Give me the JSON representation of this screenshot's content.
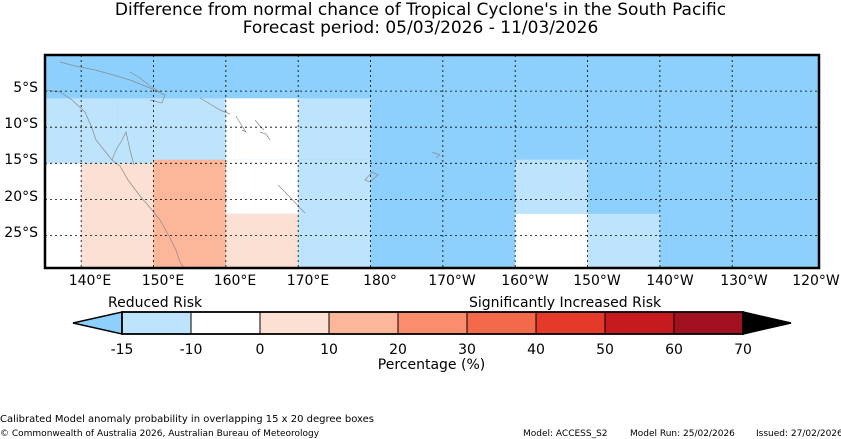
{
  "title_line1": "Difference from normal chance of Tropical Cyclone's in the South Pacific",
  "title_line2": "Forecast period: 05/03/2026 - 11/03/2026",
  "lat_labels": [
    "5°S",
    "10°S",
    "15°S",
    "20°S",
    "25°S"
  ],
  "lon_labels": [
    "140°E",
    "150°E",
    "160°E",
    "170°E",
    "180°",
    "170°W",
    "160°W",
    "150°W",
    "140°W",
    "130°W",
    "120°W"
  ],
  "map_extent": {
    "lon_min": 135,
    "lon_max": 242,
    "lat_min": -29.5,
    "lat_max": 0
  },
  "colors": {
    "blue_dark": "#8dcffd",
    "blue_light": "#bde3fd",
    "white": "#ffffff",
    "salmon_light": "#fde0d4",
    "salmon_mid": "#fcb79b",
    "orange": "#fb8d6c",
    "red_light": "#f5694b",
    "red": "#e53a2a",
    "red_dark": "#c71a1e",
    "maroon": "#a2111f",
    "black": "#000000"
  },
  "anomaly_cells": [
    {
      "lon1": 135,
      "lon2": 145,
      "lat1": -6,
      "lat2": -15,
      "cat": "blue_light"
    },
    {
      "lon1": 145,
      "lon2": 160,
      "lat1": -6,
      "lat2": -15,
      "cat": "blue_light"
    },
    {
      "lon1": 160,
      "lon2": 170,
      "lat1": -6,
      "lat2": -14.5,
      "cat": "white"
    },
    {
      "lon1": 170,
      "lon2": 180,
      "lat1": -6,
      "lat2": -14.5,
      "cat": "blue_light"
    },
    {
      "lon1": 135,
      "lon2": 140,
      "lat1": -15,
      "lat2": -29.5,
      "cat": "white"
    },
    {
      "lon1": 140,
      "lon2": 150,
      "lat1": -15,
      "lat2": -29.5,
      "cat": "salmon_light"
    },
    {
      "lon1": 150,
      "lon2": 160,
      "lat1": -14.5,
      "lat2": -29.5,
      "cat": "salmon_mid"
    },
    {
      "lon1": 160,
      "lon2": 170,
      "lat1": -14.5,
      "lat2": -22,
      "cat": "white"
    },
    {
      "lon1": 160,
      "lon2": 170,
      "lat1": -22,
      "lat2": -29.5,
      "cat": "salmon_light"
    },
    {
      "lon1": 170,
      "lon2": 180,
      "lat1": -14.5,
      "lat2": -29.5,
      "cat": "blue_light"
    },
    {
      "lon1": 200,
      "lon2": 210,
      "lat1": -14.5,
      "lat2": -22,
      "cat": "blue_light"
    },
    {
      "lon1": 200,
      "lon2": 210,
      "lat1": -22,
      "lat2": -29.5,
      "cat": "white"
    },
    {
      "lon1": 210,
      "lon2": 220,
      "lat1": -22,
      "lat2": -29.5,
      "cat": "blue_light"
    }
  ],
  "colorbar": {
    "label": "Percentage (%)",
    "reduced_label": "Reduced Risk",
    "increased_label": "Significantly Increased Risk",
    "ticks": [
      "-15",
      "-10",
      "0",
      "10",
      "20",
      "30",
      "40",
      "50",
      "60",
      "70"
    ],
    "under_color": "blue_dark",
    "over_color": "black",
    "segments": [
      "blue_light",
      "white",
      "salmon_light",
      "salmon_mid",
      "orange",
      "red_light",
      "red",
      "red_dark",
      "maroon"
    ]
  },
  "footer": {
    "line1": "Calibrated Model anomaly probability in overlapping 15 x 20 degree boxes",
    "copyright": "© Commonwealth of Australia 2026, Australian Bureau of Meteorology",
    "model": "Model: ACCESS_S2",
    "model_run": "Model Run: 25/02/2026",
    "issued": "Issued: 27/02/2026"
  }
}
